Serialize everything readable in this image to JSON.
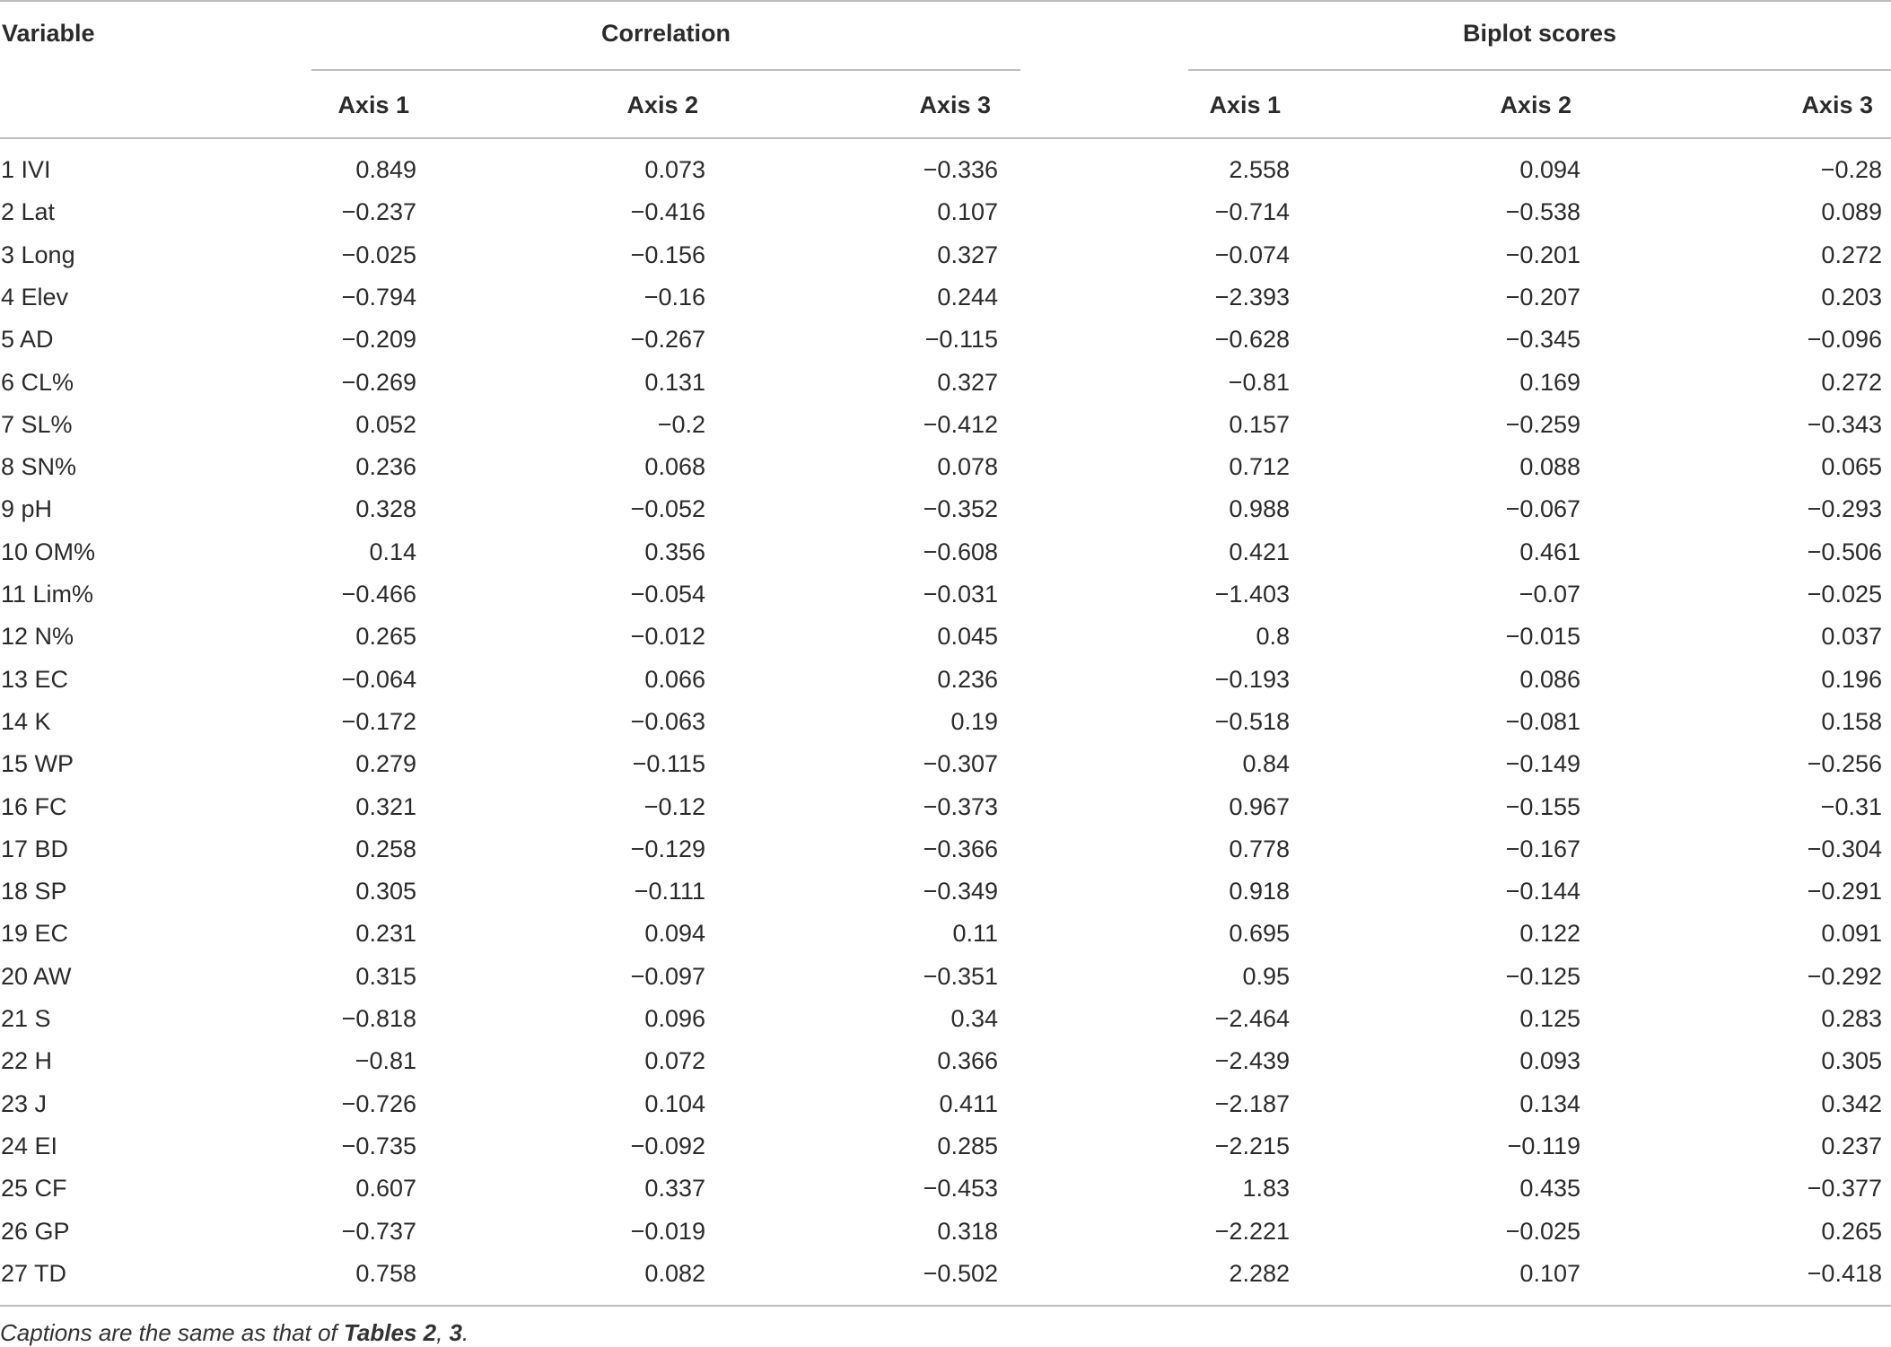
{
  "header": {
    "variable": "Variable",
    "groups": [
      "Correlation",
      "Biplot scores"
    ],
    "axes": [
      "Axis 1",
      "Axis 2",
      "Axis 3",
      "Axis 1",
      "Axis 2",
      "Axis 3"
    ]
  },
  "rows": [
    [
      "1 IVI",
      "0.849",
      "0.073",
      "−0.336",
      "2.558",
      "0.094",
      "−0.28"
    ],
    [
      "2 Lat",
      "−0.237",
      "−0.416",
      "0.107",
      "−0.714",
      "−0.538",
      "0.089"
    ],
    [
      "3 Long",
      "−0.025",
      "−0.156",
      "0.327",
      "−0.074",
      "−0.201",
      "0.272"
    ],
    [
      "4 Elev",
      "−0.794",
      "−0.16",
      "0.244",
      "−2.393",
      "−0.207",
      "0.203"
    ],
    [
      "5 AD",
      "−0.209",
      "−0.267",
      "−0.115",
      "−0.628",
      "−0.345",
      "−0.096"
    ],
    [
      "6 CL%",
      "−0.269",
      "0.131",
      "0.327",
      "−0.81",
      "0.169",
      "0.272"
    ],
    [
      "7 SL%",
      "0.052",
      "−0.2",
      "−0.412",
      "0.157",
      "−0.259",
      "−0.343"
    ],
    [
      "8 SN%",
      "0.236",
      "0.068",
      "0.078",
      "0.712",
      "0.088",
      "0.065"
    ],
    [
      "9 pH",
      "0.328",
      "−0.052",
      "−0.352",
      "0.988",
      "−0.067",
      "−0.293"
    ],
    [
      "10 OM%",
      "0.14",
      "0.356",
      "−0.608",
      "0.421",
      "0.461",
      "−0.506"
    ],
    [
      "11 Lim%",
      "−0.466",
      "−0.054",
      "−0.031",
      "−1.403",
      "−0.07",
      "−0.025"
    ],
    [
      "12 N%",
      "0.265",
      "−0.012",
      "0.045",
      "0.8",
      "−0.015",
      "0.037"
    ],
    [
      "13 EC",
      "−0.064",
      "0.066",
      "0.236",
      "−0.193",
      "0.086",
      "0.196"
    ],
    [
      "14 K",
      "−0.172",
      "−0.063",
      "0.19",
      "−0.518",
      "−0.081",
      "0.158"
    ],
    [
      "15 WP",
      "0.279",
      "−0.115",
      "−0.307",
      "0.84",
      "−0.149",
      "−0.256"
    ],
    [
      "16 FC",
      "0.321",
      "−0.12",
      "−0.373",
      "0.967",
      "−0.155",
      "−0.31"
    ],
    [
      "17 BD",
      "0.258",
      "−0.129",
      "−0.366",
      "0.778",
      "−0.167",
      "−0.304"
    ],
    [
      "18 SP",
      "0.305",
      "−0.111",
      "−0.349",
      "0.918",
      "−0.144",
      "−0.291"
    ],
    [
      "19 EC",
      "0.231",
      "0.094",
      "0.11",
      "0.695",
      "0.122",
      "0.091"
    ],
    [
      "20 AW",
      "0.315",
      "−0.097",
      "−0.351",
      "0.95",
      "−0.125",
      "−0.292"
    ],
    [
      "21 S",
      "−0.818",
      "0.096",
      "0.34",
      "−2.464",
      "0.125",
      "0.283"
    ],
    [
      "22 H",
      "−0.81",
      "0.072",
      "0.366",
      "−2.439",
      "0.093",
      "0.305"
    ],
    [
      "23 J",
      "−0.726",
      "0.104",
      "0.411",
      "−2.187",
      "0.134",
      "0.342"
    ],
    [
      "24 EI",
      "−0.735",
      "−0.092",
      "0.285",
      "−2.215",
      "−0.119",
      "0.237"
    ],
    [
      "25 CF",
      "0.607",
      "0.337",
      "−0.453",
      "1.83",
      "0.435",
      "−0.377"
    ],
    [
      "26 GP",
      "−0.737",
      "−0.019",
      "0.318",
      "−2.221",
      "−0.025",
      "0.265"
    ],
    [
      "27 TD",
      "0.758",
      "0.082",
      "−0.502",
      "2.282",
      "0.107",
      "−0.418"
    ]
  ],
  "caption": {
    "prefix": "Captions are the same as that of ",
    "ref": "Tables 2",
    "sep": ", ",
    "ref2": "3",
    "suffix": "."
  }
}
